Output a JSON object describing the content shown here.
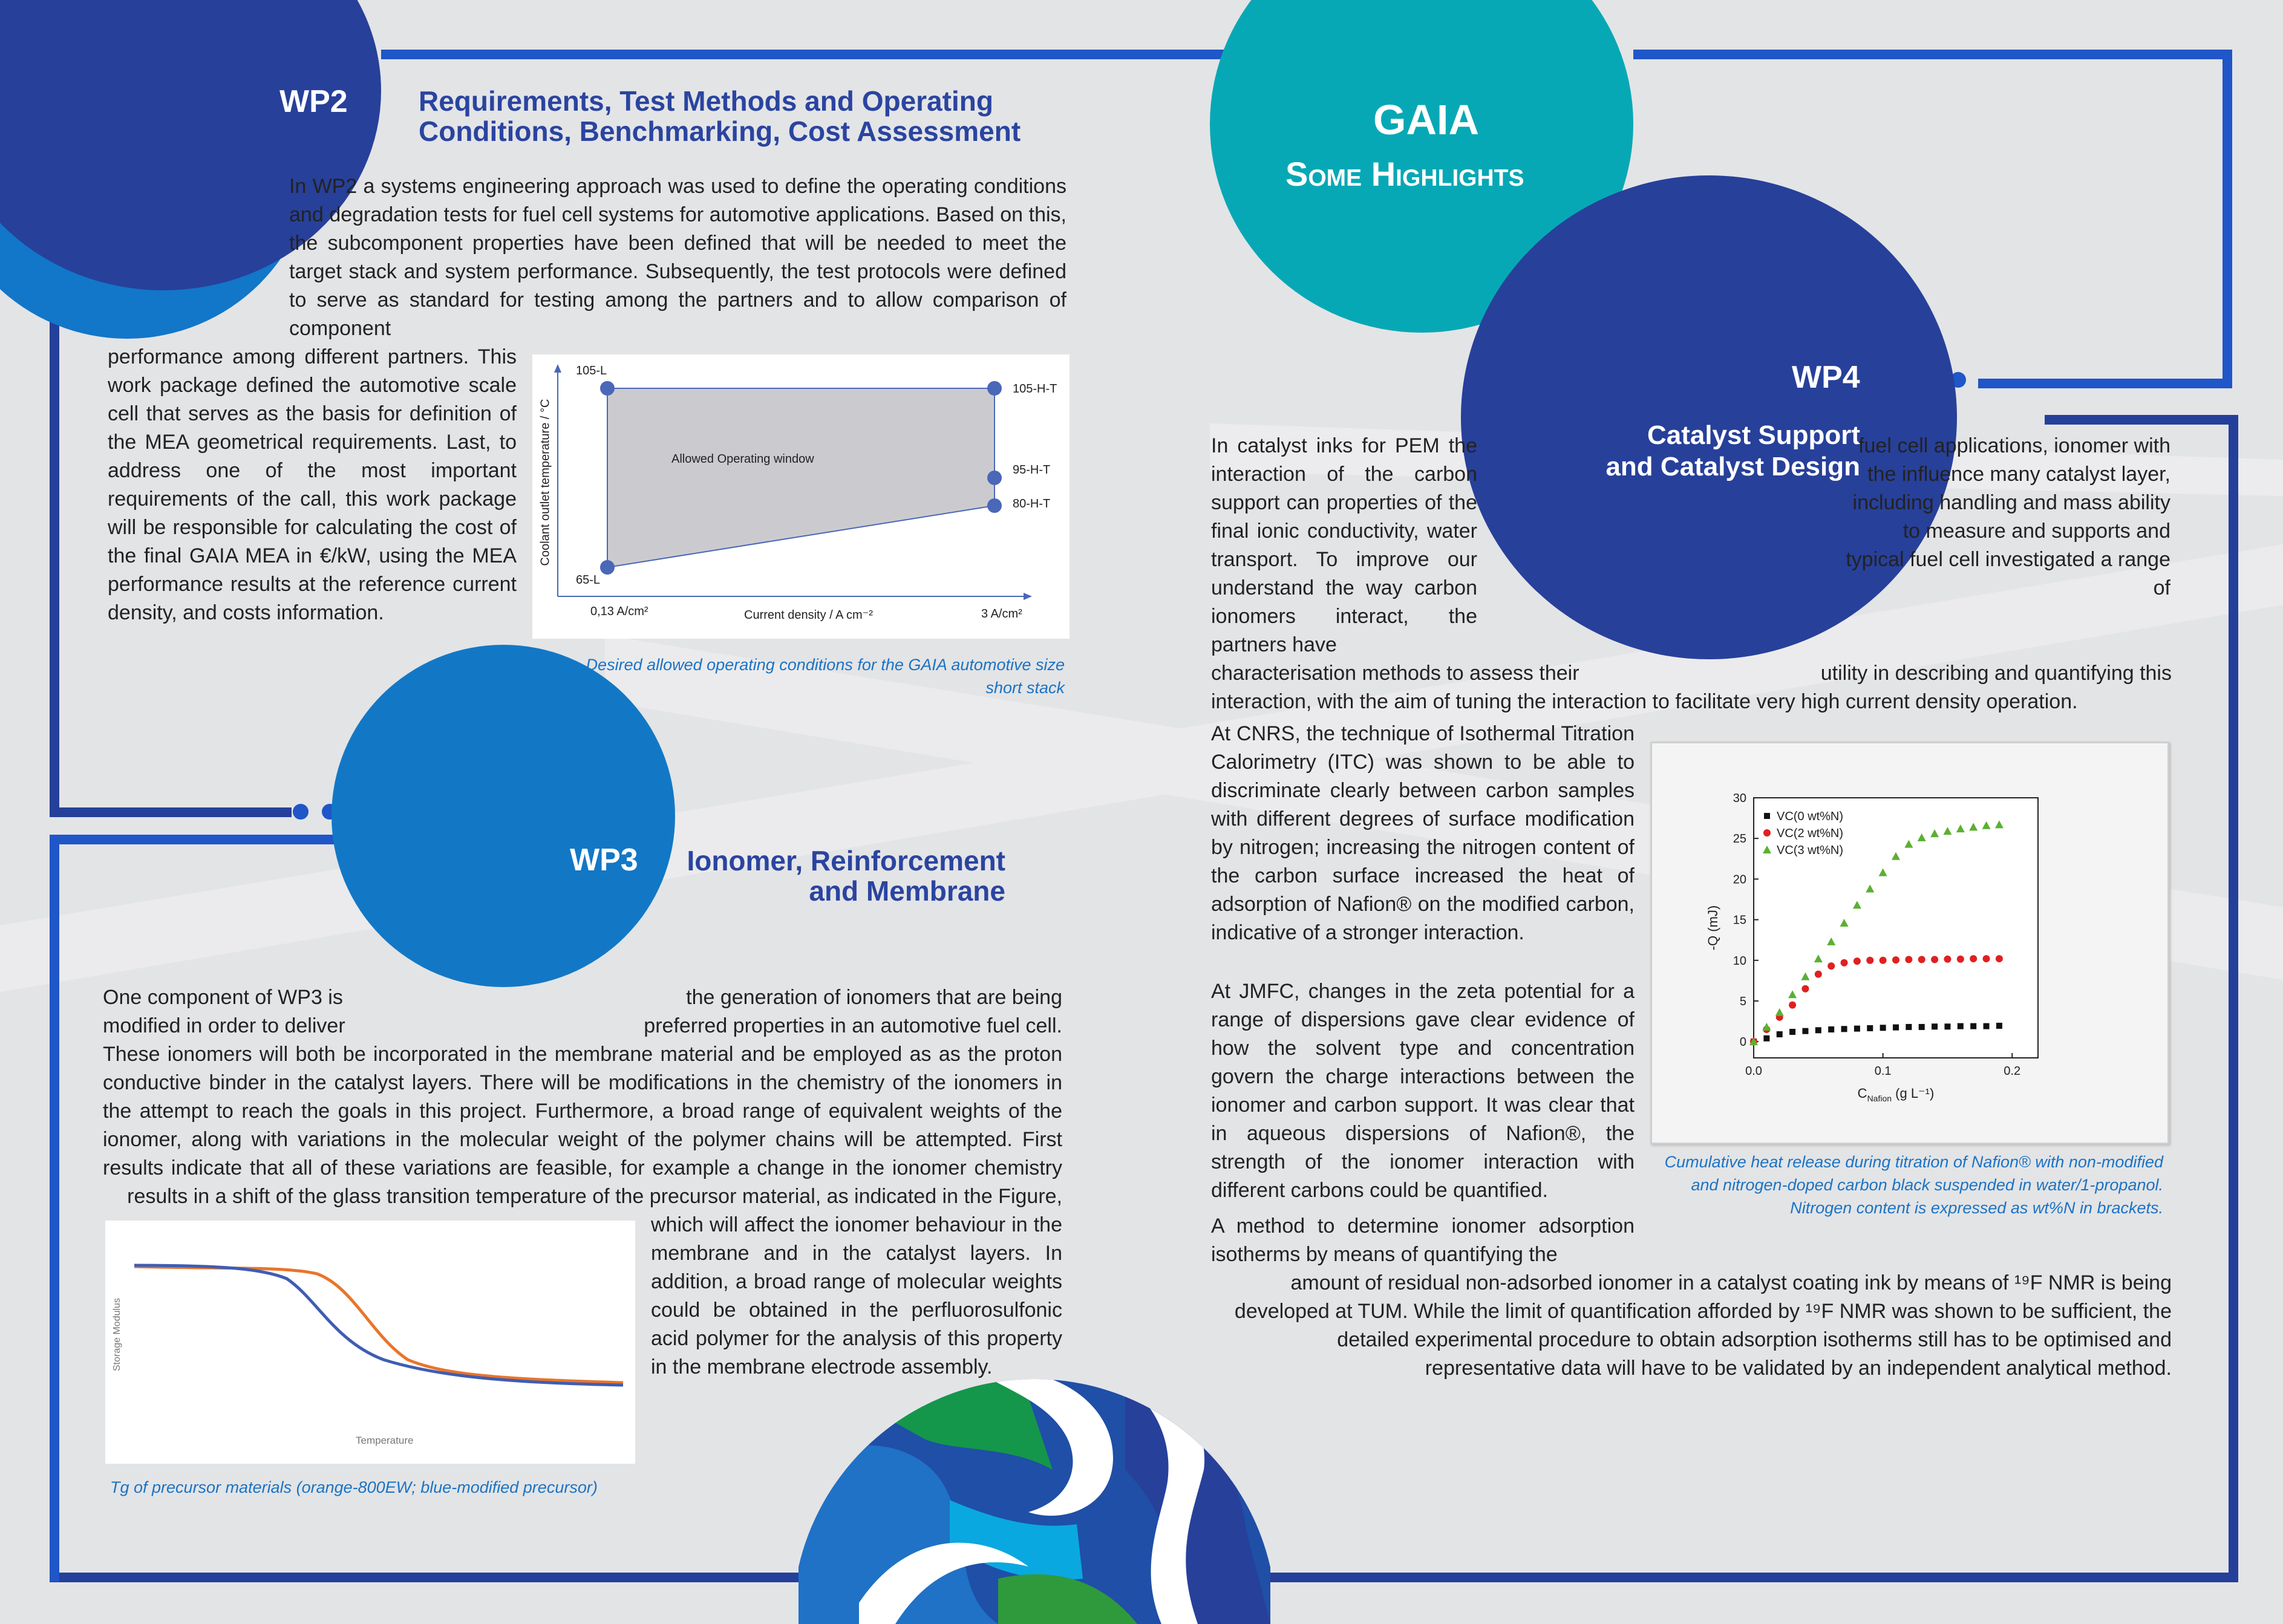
{
  "wp2": {
    "label": "WP2",
    "title_line1": "Requirements, Test Methods and Operating",
    "title_line2": "Conditions, Benchmarking, Cost Assessment",
    "body_top": "In WP2 a systems engineering approach was used to define the operating conditions and degradation tests for fuel cell systems for automotive applications. Based on this, the subcomponent properties have been defined that will be needed to meet the target stack and system performance. Subsequently, the test protocols were defined to serve as standard for testing among the partners and to allow comparison of component",
    "body_left": "performance among different partners. This work package defined the automotive scale cell that serves as the basis for definition of the MEA geometrical requirements. Last, to address one of the most important requirements of the call, this work package will be responsible for calculating the cost of the final GAIA MEA in €/kW, using the MEA performance results at the reference current density, and costs information.",
    "figure": {
      "ylabel": "Coolant outlet temperature / °C",
      "xlabel": "Current density / A cm⁻²",
      "x_start": "0,13 A/cm²",
      "x_end": "3 A/cm²",
      "area_label": "Allowed Operating window",
      "points": [
        "105-L",
        "105-H-T",
        "95-H-T",
        "80-H-T",
        "65-L"
      ]
    },
    "caption": "Desired allowed operating conditions for the GAIA automotive size short stack"
  },
  "gaia": {
    "title": "GAIA",
    "subtitle": "Some Highlights"
  },
  "wp4": {
    "label": "WP4",
    "title_line1": "Catalyst Support",
    "title_line2": "and  Catalyst Design",
    "intro_left": "In catalyst inks for PEM the interaction of the carbon support can properties of the final ionic conductivity, water transport. To improve our understand the way carbon ionomers interact, the partners have",
    "intro_right": "fuel cell applications, ionomer with the influence many catalyst layer, including handling and mass ability to measure and supports and typical fuel cell investigated a range of",
    "intro_line_a_left": "characterisation methods to assess their",
    "intro_line_a_right": "utility in describing and quantifying this",
    "intro_line_b": "interaction, with the aim of tuning the interaction to facilitate very high current density operation.",
    "cnrs": "At CNRS, the technique of Isothermal Titration Calorimetry (ITC) was shown to be able to discriminate clearly between carbon samples with different degrees of surface modification by nitrogen; increasing the nitrogen content of the carbon surface increased the heat of adsorption of Nafion® on the modified carbon, indicative of a stronger interaction.",
    "jmfc": "At JMFC, changes in the zeta potential for a range of dispersions gave clear evidence of how the solvent type and concentration govern the charge interactions between the ionomer and carbon support. It was clear that in aqueous dispersions of Nafion®, the strength of the ionomer interaction with different carbons could be quantified.",
    "method_short": "A method to determine ionomer adsorption isotherms by means of quantifying the",
    "method_long": "amount of residual non-adsorbed ionomer in a catalyst coating ink by means of ¹⁹F NMR is being developed at TUM. While the limit of quantification afforded by ¹⁹F NMR was shown to be sufficient, the detailed experimental procedure to obtain adsorption isotherms still has to be optimised and representative data will have to be validated by an independent analytical method.",
    "caption": "Cumulative heat release during titration of Nafion® with non-modified and nitrogen-doped carbon black suspended in water/1-propanol. Nitrogen content is expressed as wt%N in brackets."
  },
  "wp3": {
    "label": "WP3",
    "title_line1": "Ionomer, Reinforcement",
    "title_line2": "and Membrane",
    "intro_left1": "One component of WP3 is",
    "intro_right1": "the generation of ionomers that are being",
    "intro_left2": "modified in order to deliver",
    "intro_right2": "preferred properties in an automotive fuel cell.",
    "body_main": "These ionomers will both be incorporated in the membrane material and be employed as as the proton conductive binder in the catalyst layers.  There will be modifications in the chemistry of the ionomers in the attempt to reach the goals in this project.  Furthermore, a broad range of equivalent weights of the ionomer, along with variations in the molecular weight of the polymer chains will be attempted.  First results indicate that all of these variations are feasible, for example a change in the ionomer chemistry results in a shift of the glass transition temperature of the precursor material, as indicated in the Figure,",
    "body_right": "which will affect the ionomer behaviour in the membrane and in the catalyst layers.  In addition, a broad range of molecular weights could be obtained in the perfluorosulfonic acid polymer for the analysis of this property in the membrane electrode assembly.",
    "figure": {
      "ylabel": "Storage Modulus",
      "xlabel": "Temperature"
    },
    "caption": "Tg of precursor materials (orange-800EW; blue-modified precursor)"
  },
  "chart_data": {
    "type": "scatter",
    "xlabel": "C",
    "xlabel_sub": "Nafion",
    "xlabel_unit": " (g L⁻¹)",
    "ylabel": "-Q (mJ)",
    "xlim": [
      0.0,
      0.22
    ],
    "ylim": [
      -2,
      30
    ],
    "xticks": [
      "0.0",
      "0.1",
      "0.2"
    ],
    "yticks": [
      "0",
      "5",
      "10",
      "15",
      "20",
      "25",
      "30"
    ],
    "legend_position": "top-left",
    "series": [
      {
        "name": "VC(0 wt%N)",
        "color": "#111111",
        "marker": "square",
        "x": [
          0.0,
          0.01,
          0.02,
          0.03,
          0.04,
          0.05,
          0.06,
          0.07,
          0.08,
          0.09,
          0.1,
          0.11,
          0.12,
          0.13,
          0.14,
          0.15,
          0.16,
          0.17,
          0.18,
          0.19
        ],
        "y": [
          0,
          0.4,
          0.9,
          1.2,
          1.3,
          1.4,
          1.5,
          1.55,
          1.6,
          1.65,
          1.7,
          1.75,
          1.8,
          1.8,
          1.85,
          1.85,
          1.9,
          1.9,
          1.9,
          1.95
        ]
      },
      {
        "name": "VC(2 wt%N)",
        "color": "#e02020",
        "marker": "circle",
        "x": [
          0.0,
          0.01,
          0.02,
          0.03,
          0.04,
          0.05,
          0.06,
          0.07,
          0.08,
          0.09,
          0.1,
          0.11,
          0.12,
          0.13,
          0.14,
          0.15,
          0.16,
          0.17,
          0.18,
          0.19
        ],
        "y": [
          0,
          1.5,
          3.0,
          4.5,
          6.5,
          8.3,
          9.3,
          9.7,
          9.9,
          10.0,
          10.0,
          10.05,
          10.1,
          10.1,
          10.1,
          10.15,
          10.15,
          10.2,
          10.2,
          10.2
        ]
      },
      {
        "name": "VC(3 wt%N)",
        "color": "#5bb030",
        "marker": "triangle",
        "x": [
          0.0,
          0.01,
          0.02,
          0.03,
          0.04,
          0.05,
          0.06,
          0.07,
          0.08,
          0.09,
          0.1,
          0.11,
          0.12,
          0.13,
          0.14,
          0.15,
          0.16,
          0.17,
          0.18,
          0.19
        ],
        "y": [
          0,
          1.8,
          3.6,
          5.8,
          8.0,
          10.2,
          12.3,
          14.6,
          16.8,
          18.8,
          20.8,
          22.8,
          24.3,
          25.1,
          25.6,
          25.9,
          26.2,
          26.4,
          26.6,
          26.7
        ]
      }
    ]
  },
  "colors": {
    "dark_blue": "#27409a",
    "mid_blue": "#1f56c8",
    "teal": "#07a8b5",
    "green": "#0aa04a",
    "caption_blue": "#1b73c4"
  }
}
